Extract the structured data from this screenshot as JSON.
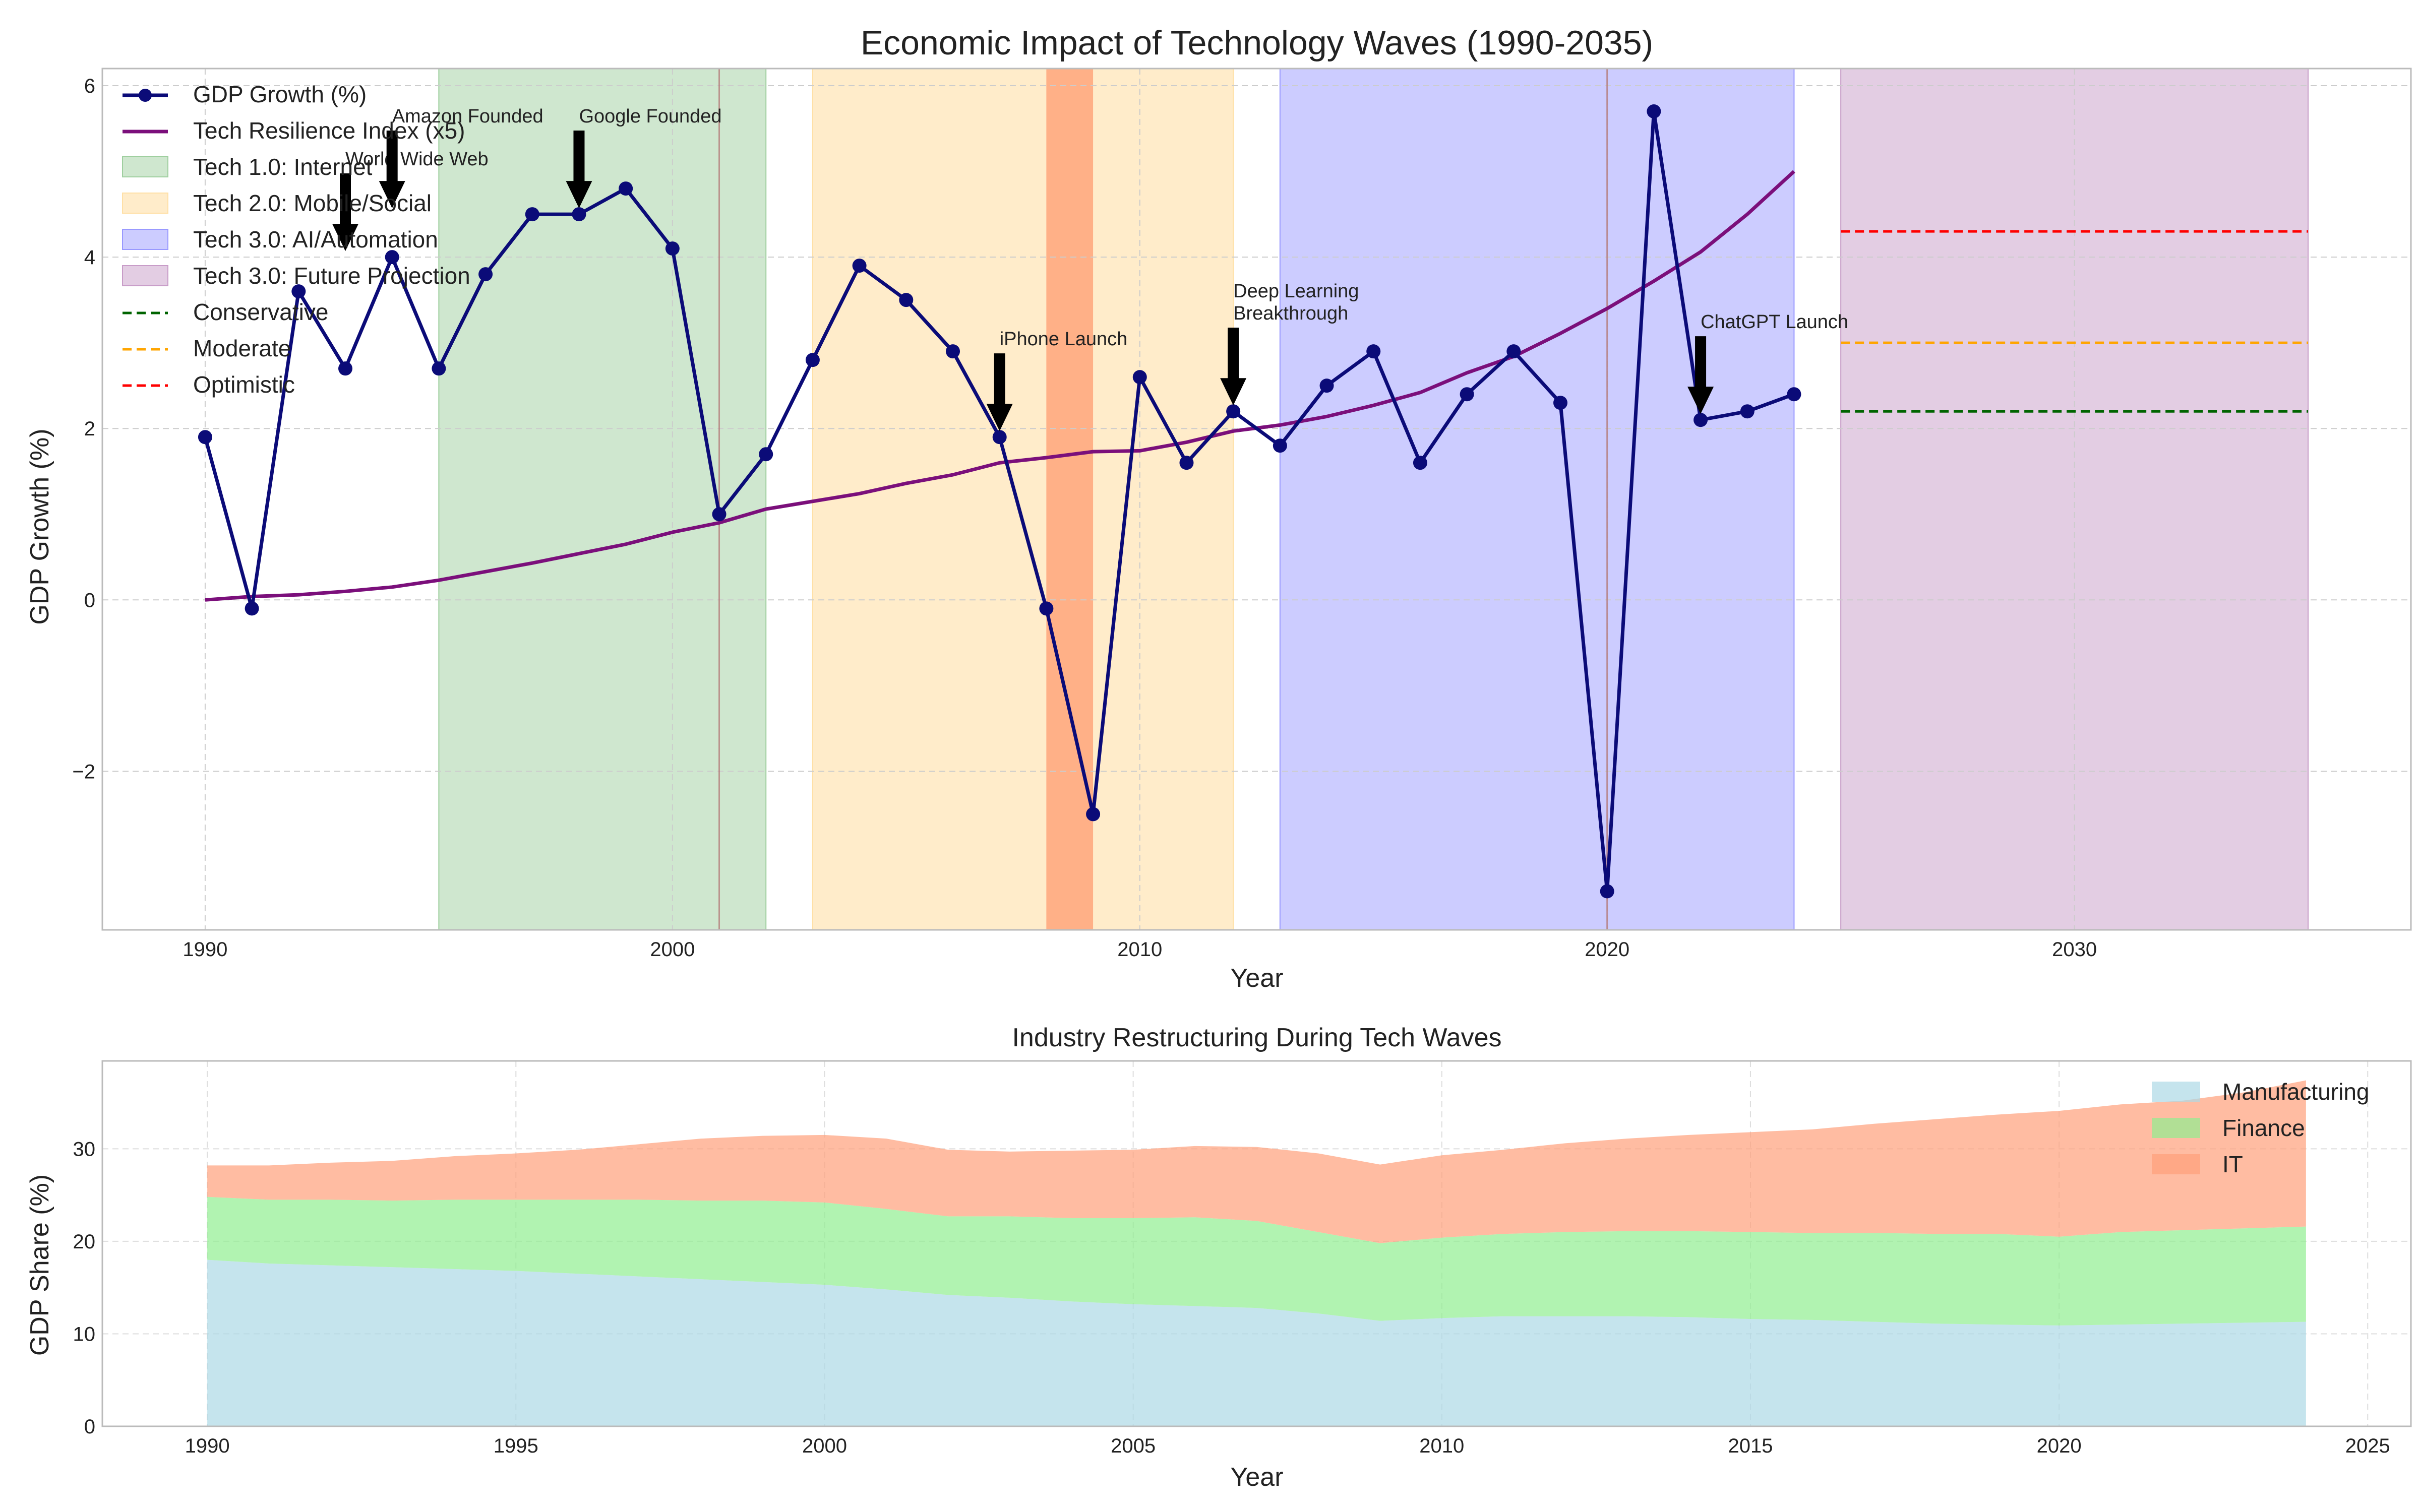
{
  "colors": {
    "gdp_line": "#0b0b78",
    "resilience_line": "#7b0f7b",
    "tech1": "#9fcf9f",
    "tech2": "#ffe0a6",
    "tech3": "#9999ff",
    "future": "#c89cc8",
    "crisis": "#ff7f50",
    "conservative": "#006400",
    "moderate": "#ffa500",
    "optimistic": "#ff0000",
    "manufacturing": "#add8e6",
    "finance": "#90ee90",
    "it": "#ffa07a",
    "grid": "#cccccc",
    "axes": "#bbbbbb"
  },
  "chart_data": [
    {
      "type": "line",
      "title": "Economic Impact of Technology Waves (1990-2035)",
      "xlabel": "Year",
      "ylabel": "GDP Growth (%)",
      "xlim": [
        1987.8,
        2037.2
      ],
      "ylim": [
        -3.85,
        6.2
      ],
      "xticks": [
        1990,
        2000,
        2010,
        2020,
        2030
      ],
      "yticks": [
        -2,
        0,
        2,
        4,
        6
      ],
      "ytick_labels": [
        "−2",
        "0",
        "2",
        "4",
        "6"
      ],
      "grid": true,
      "legend_position": "top-left",
      "series": [
        {
          "name": "GDP Growth (%)",
          "x": [
            1990,
            1991,
            1992,
            1993,
            1994,
            1995,
            1996,
            1997,
            1998,
            1999,
            2000,
            2001,
            2002,
            2003,
            2004,
            2005,
            2006,
            2007,
            2008,
            2009,
            2010,
            2011,
            2012,
            2013,
            2014,
            2015,
            2016,
            2017,
            2018,
            2019,
            2020,
            2021,
            2022,
            2023,
            2024
          ],
          "y": [
            1.9,
            -0.1,
            3.6,
            2.7,
            4.0,
            2.7,
            3.8,
            4.5,
            4.5,
            4.8,
            4.1,
            1.0,
            1.7,
            2.8,
            3.9,
            3.5,
            2.9,
            1.9,
            -0.1,
            -2.5,
            2.6,
            1.6,
            2.2,
            1.8,
            2.5,
            2.9,
            1.6,
            2.4,
            2.9,
            2.3,
            -3.4,
            5.7,
            2.1,
            2.2,
            2.4
          ]
        },
        {
          "name": "Tech Resilience Index (x5)",
          "x": [
            1990,
            1991,
            1992,
            1993,
            1994,
            1995,
            1996,
            1997,
            1998,
            1999,
            2000,
            2001,
            2002,
            2003,
            2004,
            2005,
            2006,
            2007,
            2008,
            2009,
            2010,
            2011,
            2012,
            2013,
            2014,
            2015,
            2016,
            2017,
            2018,
            2019,
            2020,
            2021,
            2022,
            2023,
            2024
          ],
          "y": [
            0.0,
            0.04,
            0.06,
            0.1,
            0.15,
            0.23,
            0.33,
            0.43,
            0.54,
            0.65,
            0.79,
            0.9,
            1.06,
            1.15,
            1.24,
            1.36,
            1.46,
            1.6,
            1.66,
            1.73,
            1.74,
            1.84,
            1.97,
            2.04,
            2.14,
            2.27,
            2.42,
            2.65,
            2.84,
            3.11,
            3.4,
            3.72,
            4.06,
            4.5,
            5.0
          ]
        }
      ],
      "wave_bands": [
        {
          "name": "Tech 1.0: Internet",
          "x0": 1995,
          "x1": 2002,
          "color_key": "tech1",
          "opacity": 0.5
        },
        {
          "name": "Tech 2.0: Mobile/Social",
          "x0": 2003,
          "x1": 2012,
          "color_key": "tech2",
          "opacity": 0.6
        },
        {
          "name": "Tech 3.0: AI/Automation",
          "x0": 2013,
          "x1": 2024,
          "color_key": "tech3",
          "opacity": 0.5
        },
        {
          "name": "Tech 3.0: Future Projection",
          "x0": 2025,
          "x1": 2035,
          "color_key": "future",
          "opacity": 0.5
        }
      ],
      "crisis_bands": [
        {
          "x0": 2008,
          "x1": 2009,
          "color_key": "crisis",
          "opacity": 0.55
        }
      ],
      "event_lines": [
        2001,
        2020
      ],
      "scenarios": [
        {
          "name": "Conservative",
          "value": 2.2,
          "x0": 2025,
          "x1": 2035,
          "color_key": "conservative"
        },
        {
          "name": "Moderate",
          "value": 3.0,
          "x0": 2025,
          "x1": 2035,
          "color_key": "moderate"
        },
        {
          "name": "Optimistic",
          "value": 4.3,
          "x0": 2025,
          "x1": 2035,
          "color_key": "optimistic"
        }
      ],
      "annotations": [
        {
          "lines": [
            "World Wide Web"
          ],
          "x": 1993,
          "y": 4.0,
          "text_x": 1993,
          "text_y": 5.0
        },
        {
          "lines": [
            "Amazon Founded"
          ],
          "x": 1994,
          "y": 4.5,
          "text_x": 1994,
          "text_y": 5.5
        },
        {
          "lines": [
            "Google Founded"
          ],
          "x": 1998,
          "y": 4.5,
          "text_x": 1998,
          "text_y": 5.5
        },
        {
          "lines": [
            "iPhone Launch"
          ],
          "x": 2007,
          "y": 1.9,
          "text_x": 2007,
          "text_y": 2.9
        },
        {
          "lines": [
            "Deep Learning",
            "Breakthrough"
          ],
          "x": 2012,
          "y": 2.2,
          "text_x": 2012,
          "text_y": 3.2
        },
        {
          "lines": [
            "ChatGPT Launch"
          ],
          "x": 2022,
          "y": 2.1,
          "text_x": 2022,
          "text_y": 3.1
        }
      ]
    },
    {
      "type": "area",
      "title": "Industry Restructuring During Tech Waves",
      "xlabel": "Year",
      "ylabel": "GDP Share (%)",
      "xlim": [
        1988.3,
        2025.7
      ],
      "ylim": [
        0,
        39.5
      ],
      "xticks": [
        1990,
        1995,
        2000,
        2005,
        2010,
        2015,
        2020,
        2025
      ],
      "yticks": [
        0,
        10,
        20,
        30
      ],
      "grid": true,
      "stacked": true,
      "legend_position": "top-right",
      "x": [
        1990,
        1991,
        1992,
        1993,
        1994,
        1995,
        1996,
        1997,
        1998,
        1999,
        2000,
        2001,
        2002,
        2003,
        2004,
        2005,
        2006,
        2007,
        2008,
        2009,
        2010,
        2011,
        2012,
        2013,
        2014,
        2015,
        2016,
        2017,
        2018,
        2019,
        2020,
        2021,
        2022,
        2023,
        2024
      ],
      "series": [
        {
          "name": "Manufacturing",
          "color_key": "manufacturing",
          "values": [
            18.0,
            17.6,
            17.4,
            17.2,
            17.0,
            16.8,
            16.5,
            16.2,
            15.9,
            15.6,
            15.3,
            14.8,
            14.2,
            13.9,
            13.5,
            13.2,
            13.0,
            12.8,
            12.2,
            11.4,
            11.7,
            11.9,
            11.9,
            11.9,
            11.8,
            11.6,
            11.5,
            11.3,
            11.1,
            11.0,
            10.9,
            11.0,
            11.1,
            11.2,
            11.3
          ]
        },
        {
          "name": "Finance",
          "color_key": "finance",
          "values": [
            6.8,
            6.9,
            7.1,
            7.2,
            7.5,
            7.7,
            8.0,
            8.3,
            8.5,
            8.8,
            8.9,
            8.7,
            8.5,
            8.8,
            9.0,
            9.3,
            9.6,
            9.4,
            8.8,
            8.4,
            8.7,
            8.9,
            9.1,
            9.2,
            9.3,
            9.4,
            9.4,
            9.6,
            9.7,
            9.8,
            9.6,
            10.0,
            10.1,
            10.2,
            10.3
          ]
        },
        {
          "name": "IT",
          "color_key": "it",
          "values": [
            3.4,
            3.7,
            4.0,
            4.3,
            4.7,
            5.0,
            5.4,
            6.0,
            6.7,
            7.0,
            7.3,
            7.6,
            7.2,
            7.0,
            7.3,
            7.4,
            7.7,
            8.0,
            8.5,
            8.5,
            8.9,
            9.1,
            9.6,
            10.0,
            10.4,
            10.8,
            11.2,
            11.8,
            12.4,
            12.9,
            13.6,
            13.8,
            14.0,
            14.7,
            15.8
          ]
        }
      ]
    }
  ]
}
